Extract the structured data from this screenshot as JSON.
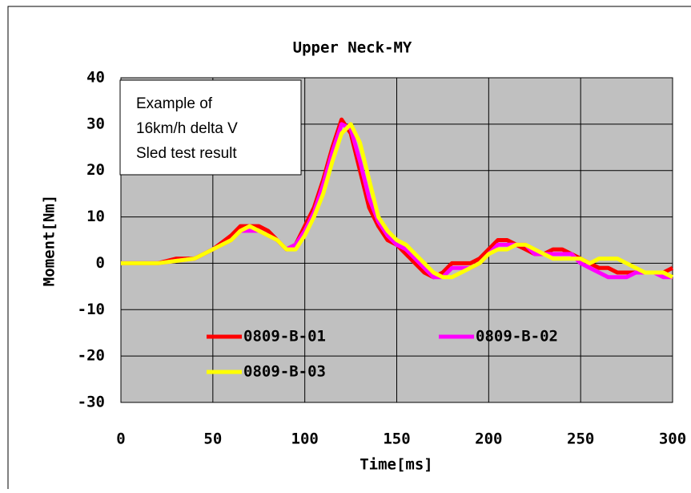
{
  "chart_data": {
    "type": "line",
    "title": "Upper Neck-MY",
    "x_label": "Time[ms]",
    "y_label": "Moment[Nm]",
    "annotation": [
      "Example of",
      "16km/h delta V",
      "Sled test result"
    ],
    "x": [
      0,
      10,
      20,
      30,
      40,
      50,
      60,
      65,
      70,
      75,
      80,
      85,
      90,
      95,
      100,
      105,
      110,
      115,
      120,
      125,
      130,
      135,
      140,
      145,
      150,
      155,
      160,
      165,
      170,
      175,
      180,
      185,
      190,
      195,
      200,
      205,
      210,
      215,
      220,
      225,
      230,
      235,
      240,
      245,
      250,
      255,
      260,
      265,
      270,
      275,
      280,
      285,
      290,
      295,
      300
    ],
    "series": [
      {
        "name": "0809-B-01",
        "color": "#ff0000",
        "values": [
          0,
          0,
          0,
          1,
          1,
          3,
          6,
          8,
          8,
          8,
          7,
          5,
          3,
          4,
          8,
          12,
          18,
          25,
          31,
          28,
          20,
          12,
          8,
          5,
          4,
          2,
          0,
          -2,
          -3,
          -2,
          0,
          0,
          0,
          1,
          3,
          5,
          5,
          4,
          3,
          2,
          2,
          3,
          3,
          2,
          1,
          0,
          -1,
          -1,
          -2,
          -2,
          -2,
          -2,
          -2,
          -2,
          -1
        ]
      },
      {
        "name": "0809-B-02",
        "color": "#ff00ff",
        "values": [
          0,
          0,
          0,
          0.5,
          1,
          3,
          5,
          7,
          7,
          7,
          6,
          5,
          3,
          4,
          7,
          11,
          17,
          24,
          30,
          29,
          22,
          14,
          9,
          6,
          4,
          3,
          1,
          -1,
          -3,
          -3,
          -1,
          -1,
          -1,
          0,
          2,
          4,
          4,
          4,
          4,
          2,
          2,
          2,
          2,
          2,
          0,
          -1,
          -2,
          -3,
          -3,
          -3,
          -2,
          -2,
          -2,
          -3,
          -3
        ]
      },
      {
        "name": "0809-B-03",
        "color": "#ffff00",
        "values": [
          0,
          0,
          0,
          0.5,
          1,
          3,
          5,
          7,
          8,
          7,
          6,
          5,
          3,
          3,
          6,
          10,
          15,
          22,
          28,
          30,
          26,
          18,
          10,
          7,
          5,
          4,
          2,
          0,
          -2,
          -3,
          -3,
          -2,
          -1,
          0,
          2,
          3,
          3,
          4,
          4,
          3,
          2,
          1,
          1,
          1,
          1,
          0,
          1,
          1,
          1,
          0,
          -1,
          -2,
          -2,
          -2,
          -3
        ]
      }
    ],
    "xlim": [
      0,
      300
    ],
    "xticks": [
      0,
      50,
      100,
      150,
      200,
      250,
      300
    ],
    "ylim": [
      -30,
      40
    ],
    "yticks": [
      -30,
      -20,
      -10,
      0,
      10,
      20,
      30,
      40
    ],
    "grid": true,
    "plot_background": "#c0c0c0"
  }
}
